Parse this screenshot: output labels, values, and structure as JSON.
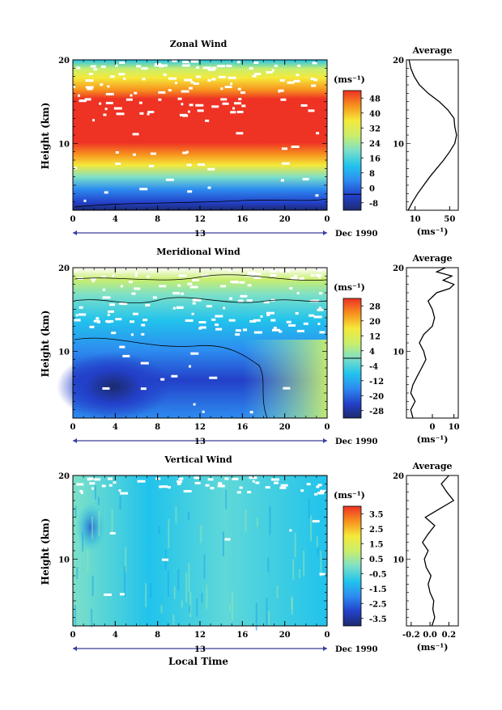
{
  "chart_data": [
    {
      "type": "heatmap",
      "title": "Zonal Wind",
      "ylabel": "Height (km)",
      "ylim": [
        2,
        20
      ],
      "y_ticks": [
        "10",
        "20"
      ],
      "x_ticks": [
        "0",
        "4",
        "8",
        "12",
        "16",
        "20",
        "0"
      ],
      "xlim": [
        0,
        24
      ],
      "date_day_label": "13",
      "date_label": "Dec 1990",
      "colorbar": {
        "unit": "(ms⁻¹)",
        "labels": [
          "48",
          "40",
          "32",
          "24",
          "16",
          "8",
          "0",
          "-8"
        ],
        "range": [
          -8,
          52
        ],
        "zero_line": true
      },
      "profile": {
        "title": "Average",
        "x_ticks": [
          "10",
          "50"
        ],
        "y_ticks": [
          "10",
          "20"
        ],
        "xlim": [
          0,
          60
        ],
        "unit": "(ms⁻¹)",
        "y": [
          2,
          3,
          4,
          5,
          6,
          7,
          8,
          9,
          10,
          11,
          12,
          13,
          14,
          15,
          16,
          17,
          18,
          19,
          20
        ],
        "x": [
          2,
          7,
          13,
          20,
          27,
          35,
          43,
          50,
          56,
          58,
          56,
          55,
          48,
          38,
          25,
          15,
          9,
          5,
          3
        ]
      }
    },
    {
      "type": "heatmap",
      "title": "Meridional Wind",
      "ylabel": "Height (km)",
      "ylim": [
        2,
        20
      ],
      "y_ticks": [
        "10",
        "20"
      ],
      "x_ticks": [
        "0",
        "4",
        "8",
        "12",
        "16",
        "20",
        "0"
      ],
      "xlim": [
        0,
        24
      ],
      "date_day_label": "13",
      "date_label": "Dec 1990",
      "colorbar": {
        "unit": "(ms⁻¹)",
        "labels": [
          "28",
          "20",
          "12",
          "4",
          "-4",
          "-12",
          "-20",
          "-28"
        ],
        "range": [
          -32,
          32
        ],
        "zero_line": true
      },
      "profile": {
        "title": "Average",
        "x_ticks": [
          "0",
          "10"
        ],
        "y_ticks": [
          "10",
          "20"
        ],
        "xlim": [
          -12,
          12
        ],
        "unit": "(ms⁻¹)",
        "y": [
          2,
          3,
          4,
          5,
          6,
          7,
          8,
          9,
          10,
          11,
          12,
          13,
          14,
          15,
          16,
          17,
          17.5,
          18,
          18.5,
          19,
          19.5,
          20
        ],
        "x": [
          -9,
          -10,
          -8,
          -10,
          -9,
          -7,
          -5,
          -3,
          -4,
          -6,
          -4,
          0,
          1,
          0,
          -2,
          2,
          8,
          10,
          5,
          9,
          2,
          6
        ]
      }
    },
    {
      "type": "heatmap",
      "title": "Vertical Wind",
      "ylabel": "Height (km)",
      "xlabel": "Local Time",
      "ylim": [
        2,
        20
      ],
      "y_ticks": [
        "10",
        "20"
      ],
      "x_ticks": [
        "0",
        "4",
        "8",
        "12",
        "16",
        "20",
        "0"
      ],
      "xlim": [
        0,
        24
      ],
      "date_day_label": "13",
      "date_label": "Dec 1990",
      "colorbar": {
        "unit": "(ms⁻¹)",
        "labels": [
          "3.5",
          "2.5",
          "1.5",
          "0.5",
          "-0.5",
          "-1.5",
          "-2.5",
          "-3.5"
        ],
        "range": [
          -4,
          4
        ],
        "zero_line": false
      },
      "profile": {
        "title": "Average",
        "x_ticks": [
          "-0.2",
          "0.0",
          "0.2"
        ],
        "y_ticks": [
          "10",
          "20"
        ],
        "xlim": [
          -0.25,
          0.3
        ],
        "unit": "(ms⁻¹)",
        "y": [
          2,
          3,
          4,
          5,
          6,
          7,
          8,
          9,
          10,
          11,
          12,
          13,
          14,
          15,
          16,
          17,
          18,
          19,
          20
        ],
        "x": [
          0.02,
          0.05,
          0.03,
          0.04,
          0.0,
          -0.02,
          0.01,
          -0.04,
          -0.06,
          -0.02,
          -0.08,
          -0.02,
          0.05,
          -0.05,
          0.1,
          0.25,
          0.18,
          0.12,
          0.2
        ]
      }
    }
  ]
}
